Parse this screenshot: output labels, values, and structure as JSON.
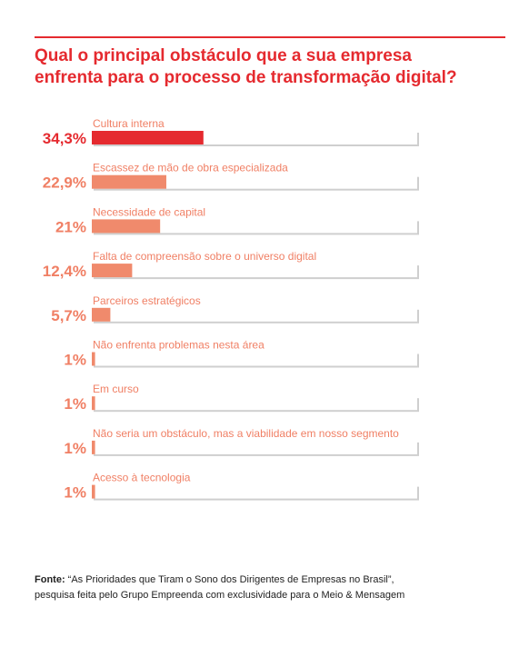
{
  "title_lines": [
    "Qual o principal obstáculo que a sua empresa",
    "enfrenta para o processo de transformação digital?"
  ],
  "colors": {
    "accent": "#e52a2f",
    "bar": "#f08a6c",
    "track": "#ffffff",
    "track_shadow": "#cfcfcf",
    "category_text": "#f07f64"
  },
  "chart_data": {
    "type": "bar",
    "orientation": "horizontal",
    "title": "Qual o principal obstáculo que a sua empresa enfrenta para o processo de transformação digital?",
    "categories": [
      "Cultura interna",
      "Escassez de mão de obra especializada",
      "Necessidade de capital",
      "Falta de compreensão sobre o universo digital",
      "Parceiros estratégicos",
      "Não enfrenta problemas nesta área",
      "Em curso",
      "Não seria um obstáculo, mas a viabilidade em nosso segmento",
      "Acesso à tecnologia"
    ],
    "values": [
      34.3,
      22.9,
      21,
      12.4,
      5.7,
      1,
      1,
      1,
      1
    ],
    "value_labels": [
      "34,3%",
      "22,9%",
      "21%",
      "12,4%",
      "5,7%",
      "1%",
      "1%",
      "1%",
      "1%"
    ],
    "unit": "%",
    "xlim": [
      0,
      100
    ],
    "grid": false,
    "legend": false
  },
  "source": {
    "label": "Fonte:",
    "line1": " “As Prioridades que Tiram o Sono dos Dirigentes de Empresas no Brasil”,",
    "line2": "pesquisa feita pelo Grupo Empreenda com exclusividade para o Meio & Mensagem"
  }
}
